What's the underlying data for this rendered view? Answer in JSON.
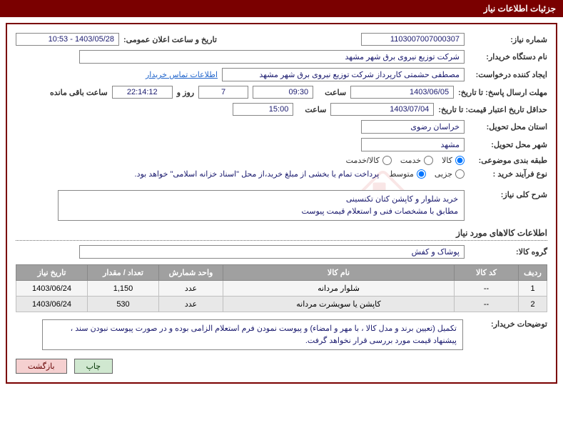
{
  "header": {
    "title": "جزئیات اطلاعات نیاز"
  },
  "fields": {
    "need_number_label": "شماره نیاز:",
    "need_number": "1103007007000307",
    "announce_label": "تاریخ و ساعت اعلان عمومی:",
    "announce_value": "1403/05/28 - 10:53",
    "buyer_org_label": "نام دستگاه خریدار:",
    "buyer_org": "شرکت توزیع نیروی برق شهر مشهد",
    "requester_label": "ایجاد کننده درخواست:",
    "requester": "مصطفی حشمتی کارپرداز شرکت توزیع نیروی برق شهر مشهد",
    "contact_link": "اطلاعات تماس خریدار",
    "deadline_label": "مهلت ارسال پاسخ: تا تاریخ:",
    "deadline_date": "1403/06/05",
    "time_label": "ساعت",
    "deadline_time": "09:30",
    "days_remaining": "7",
    "days_label": "روز و",
    "countdown": "22:14:12",
    "remaining_label": "ساعت باقی مانده",
    "validity_label": "حداقل تاریخ اعتبار قیمت: تا تاریخ:",
    "validity_date": "1403/07/04",
    "validity_time": "15:00",
    "province_label": "استان محل تحویل:",
    "province": "خراسان رضوی",
    "city_label": "شهر محل تحویل:",
    "city": "مشهد",
    "category_label": "طبقه بندی موضوعی:",
    "purchase_type_label": "نوع فرآیند خرید :",
    "payment_note": "پرداخت تمام یا بخشی از مبلغ خرید،از محل \"اسناد خزانه اسلامی\" خواهد بود.",
    "description_label": "شرح کلی نیاز:",
    "description": "خرید شلوار و کاپشن کتان تکنسینی\nمطابق با مشخصات فنی و استعلام قیمت پیوست",
    "goods_section_title": "اطلاعات کالاهای مورد نیاز",
    "goods_group_label": "گروه کالا:",
    "goods_group": "پوشاک و کفش",
    "buyer_notes_label": "توضیحات خریدار:",
    "buyer_notes": "تکمیل (تعیین برند و مدل کالا ، با مهر و امضاء) و پیوست نمودن فرم استعلام الزامی بوده و در صورت پیوست نبودن سند ، پیشنهاد قیمت مورد بررسی قرار نخواهد گرفت."
  },
  "radios": {
    "category": [
      {
        "label": "کالا",
        "checked": true
      },
      {
        "label": "خدمت",
        "checked": false
      },
      {
        "label": "کالا/خدمت",
        "checked": false
      }
    ],
    "purchase_type": [
      {
        "label": "جزیی",
        "checked": false
      },
      {
        "label": "متوسط",
        "checked": true
      }
    ]
  },
  "table": {
    "headers": [
      "ردیف",
      "کد کالا",
      "نام کالا",
      "واحد شمارش",
      "تعداد / مقدار",
      "تاریخ نیاز"
    ],
    "rows": [
      [
        "1",
        "--",
        "شلوار مردانه",
        "عدد",
        "1,150",
        "1403/06/24"
      ],
      [
        "2",
        "--",
        "کاپشن یا سویشرت مردانه",
        "عدد",
        "530",
        "1403/06/24"
      ]
    ]
  },
  "buttons": {
    "print": "چاپ",
    "back": "بازگشت"
  }
}
